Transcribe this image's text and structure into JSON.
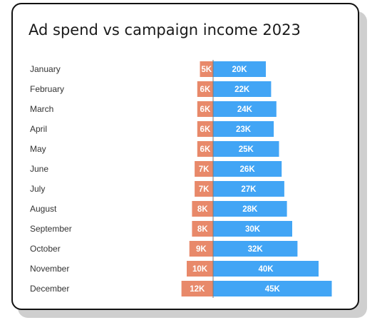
{
  "chart_data": {
    "type": "bar",
    "orientation": "horizontal-diverging",
    "title": "Ad spend vs campaign income 2023",
    "categories": [
      "January",
      "February",
      "March",
      "April",
      "May",
      "June",
      "July",
      "August",
      "September",
      "October",
      "November",
      "December"
    ],
    "series": [
      {
        "name": "Ad spend",
        "direction": "left",
        "color": "#e8896a",
        "values": [
          5,
          6,
          6,
          6,
          6,
          7,
          7,
          8,
          8,
          9,
          10,
          12
        ],
        "labels": [
          "5K",
          "6K",
          "6K",
          "6K",
          "6K",
          "7K",
          "7K",
          "8K",
          "8K",
          "9K",
          "10K",
          "12K"
        ]
      },
      {
        "name": "Campaign income",
        "direction": "right",
        "color": "#42a5f5",
        "values": [
          20,
          22,
          24,
          23,
          25,
          26,
          27,
          28,
          30,
          32,
          40,
          45
        ],
        "labels": [
          "20K",
          "22K",
          "24K",
          "23K",
          "25K",
          "26K",
          "27K",
          "28K",
          "30K",
          "32K",
          "40K",
          "45K"
        ]
      }
    ],
    "unit": "K",
    "grid": false,
    "legend": "none"
  }
}
